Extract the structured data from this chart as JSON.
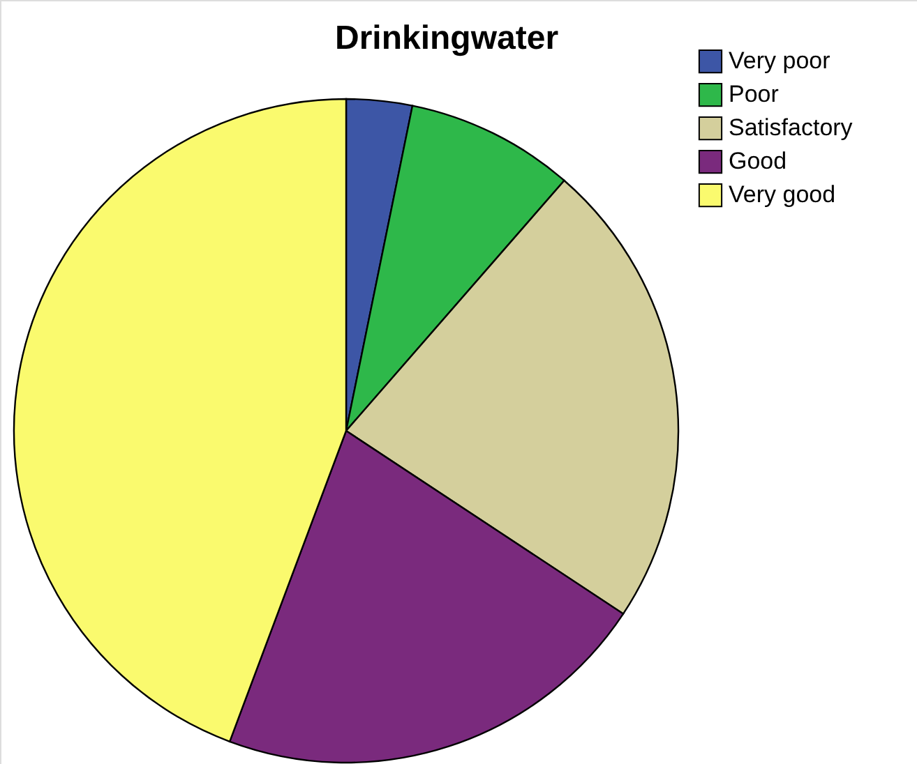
{
  "chart_data": {
    "type": "pie",
    "title": "Drinkingwater",
    "categories": [
      "Very poor",
      "Poor",
      "Satisfactory",
      "Good",
      "Very good"
    ],
    "values": [
      3.2,
      8.2,
      22.9,
      21.4,
      44.3
    ],
    "colors": [
      "#3d56a6",
      "#2eb84a",
      "#d4cf9c",
      "#7a2a7d",
      "#fafa6e"
    ],
    "legend": "top right"
  }
}
